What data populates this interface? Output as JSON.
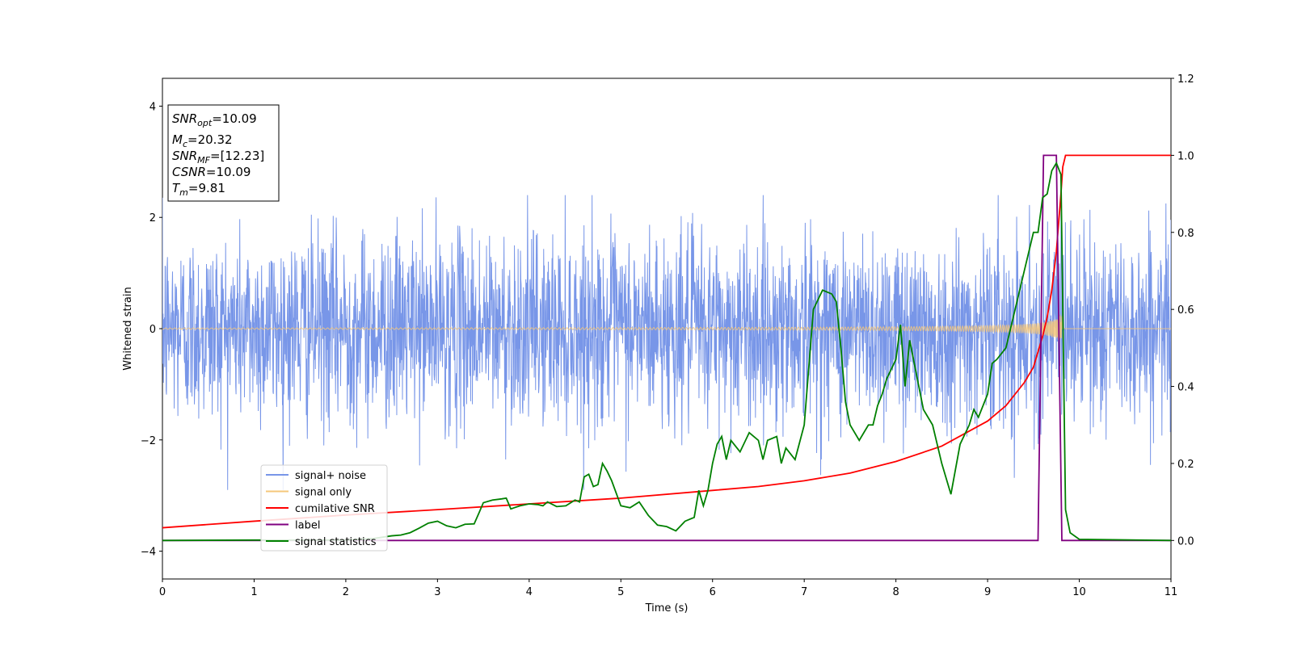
{
  "chart_data": {
    "type": "line",
    "xlabel": "Time (s)",
    "ylabel": "Whitened strain",
    "xlim": [
      0,
      11
    ],
    "ylim": [
      -4.5,
      4.5
    ],
    "y2lim": [
      -0.1,
      1.2
    ],
    "x_ticks": [
      "0",
      "1",
      "2",
      "3",
      "4",
      "5",
      "6",
      "7",
      "8",
      "9",
      "10",
      "11"
    ],
    "y_ticks": [
      "4",
      "2",
      "0",
      "−2",
      "−4"
    ],
    "y2_ticks": [
      "1.2",
      "1.0",
      "0.8",
      "0.6",
      "0.4",
      "0.2",
      "0.0"
    ],
    "grid": false,
    "legend_position": "lower-left",
    "annotation": {
      "line1_sym": "SNR",
      "line1_sub": "opt",
      "line1_val": "=10.09",
      "line2_sym": "M",
      "line2_sub": "c",
      "line2_val": "=20.32",
      "line3_sym": "SNR",
      "line3_sub": "MF",
      "line3_val": "=[12.23]",
      "line4_sym": "CSNR",
      "line4_val": "=10.09",
      "line5_sym": "T",
      "line5_sub": "m",
      "line5_val": "=9.81"
    },
    "series": [
      {
        "name": "signal+ noise",
        "color": "#7896e8",
        "axis": "left",
        "description_values": {
          "noise_std": 0.85,
          "x_start": 0,
          "x_end": 11
        }
      },
      {
        "name": "signal only",
        "color": "#f5c77a",
        "axis": "left",
        "description_values": {
          "merger_time": 9.81
        }
      },
      {
        "name": "cumilative SNR",
        "color": "#ff0000",
        "axis": "right",
        "x": [
          0,
          1,
          2,
          3,
          4,
          5,
          6,
          6.5,
          7,
          7.5,
          8,
          8.5,
          9,
          9.2,
          9.4,
          9.5,
          9.6,
          9.65,
          9.7,
          9.75,
          9.8,
          9.82,
          9.85,
          11
        ],
        "y": [
          0.033,
          0.05,
          0.066,
          0.08,
          0.095,
          0.11,
          0.13,
          0.14,
          0.155,
          0.175,
          0.205,
          0.245,
          0.31,
          0.35,
          0.41,
          0.45,
          0.53,
          0.58,
          0.65,
          0.75,
          0.9,
          0.97,
          1.0,
          1.0
        ]
      },
      {
        "name": "label",
        "color": "#800080",
        "axis": "right",
        "x": [
          0,
          9.55,
          9.61,
          9.75,
          9.81,
          11
        ],
        "y": [
          0,
          0,
          1,
          1,
          0,
          0
        ]
      },
      {
        "name": "signal statistics",
        "color": "#008000",
        "axis": "right",
        "x": [
          0,
          1,
          2,
          2.3,
          2.5,
          2.6,
          2.7,
          2.8,
          2.9,
          3.0,
          3.1,
          3.2,
          3.3,
          3.4,
          3.45,
          3.5,
          3.6,
          3.7,
          3.75,
          3.8,
          3.9,
          4.0,
          4.1,
          4.15,
          4.2,
          4.3,
          4.4,
          4.5,
          4.55,
          4.6,
          4.65,
          4.7,
          4.75,
          4.8,
          4.85,
          4.9,
          5.0,
          5.1,
          5.2,
          5.3,
          5.4,
          5.5,
          5.6,
          5.7,
          5.8,
          5.85,
          5.9,
          5.95,
          6.0,
          6.05,
          6.1,
          6.15,
          6.2,
          6.3,
          6.4,
          6.5,
          6.55,
          6.6,
          6.7,
          6.75,
          6.8,
          6.9,
          7.0,
          7.1,
          7.2,
          7.3,
          7.35,
          7.4,
          7.45,
          7.5,
          7.6,
          7.7,
          7.75,
          7.8,
          7.85,
          7.9,
          8.0,
          8.05,
          8.1,
          8.15,
          8.2,
          8.3,
          8.4,
          8.45,
          8.5,
          8.6,
          8.7,
          8.8,
          8.85,
          8.9,
          9.0,
          9.05,
          9.1,
          9.2,
          9.3,
          9.4,
          9.5,
          9.55,
          9.6,
          9.65,
          9.7,
          9.75,
          9.8,
          9.85,
          9.9,
          10.0,
          11
        ],
        "y": [
          0,
          0.001,
          0.001,
          0.005,
          0.012,
          0.014,
          0.02,
          0.032,
          0.045,
          0.05,
          0.038,
          0.033,
          0.042,
          0.043,
          0.07,
          0.098,
          0.105,
          0.108,
          0.11,
          0.082,
          0.09,
          0.095,
          0.093,
          0.09,
          0.1,
          0.088,
          0.09,
          0.105,
          0.1,
          0.165,
          0.172,
          0.14,
          0.145,
          0.2,
          0.18,
          0.155,
          0.09,
          0.085,
          0.1,
          0.065,
          0.04,
          0.036,
          0.025,
          0.05,
          0.06,
          0.13,
          0.09,
          0.13,
          0.2,
          0.25,
          0.27,
          0.21,
          0.26,
          0.23,
          0.28,
          0.26,
          0.21,
          0.26,
          0.27,
          0.2,
          0.24,
          0.21,
          0.3,
          0.6,
          0.65,
          0.64,
          0.62,
          0.5,
          0.36,
          0.3,
          0.26,
          0.3,
          0.3,
          0.35,
          0.38,
          0.42,
          0.47,
          0.56,
          0.4,
          0.52,
          0.46,
          0.34,
          0.3,
          0.25,
          0.2,
          0.12,
          0.25,
          0.3,
          0.34,
          0.32,
          0.38,
          0.46,
          0.47,
          0.5,
          0.6,
          0.7,
          0.8,
          0.8,
          0.89,
          0.9,
          0.96,
          0.98,
          0.95,
          0.08,
          0.02,
          0.003,
          0
        ]
      }
    ]
  }
}
